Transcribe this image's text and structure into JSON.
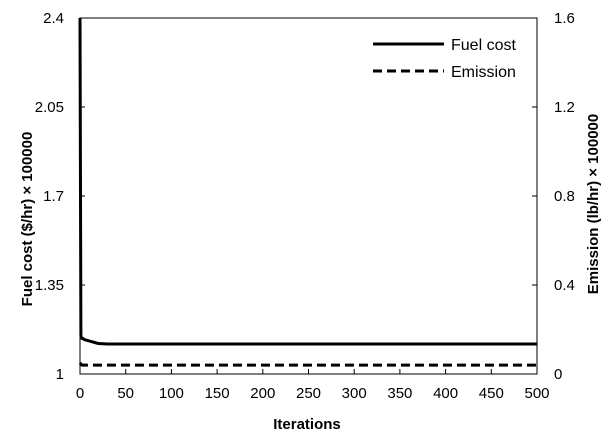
{
  "chart_data": {
    "type": "line",
    "xlabel": "Iterations",
    "ylabel_left": "Fuel cost ($/hr) × 100000",
    "ylabel_right": "Emission (lb/hr) × 100000",
    "xlim": [
      0,
      500
    ],
    "ylim_left": [
      1,
      2.4
    ],
    "ylim_right": [
      0,
      1.6
    ],
    "x_ticks": [
      "0",
      "50",
      "100",
      "150",
      "200",
      "250",
      "300",
      "350",
      "400",
      "450",
      "500"
    ],
    "y_left_ticks": [
      "1",
      "1.35",
      "1.7",
      "2.05",
      "2.4"
    ],
    "y_right_ticks": [
      "0",
      "0.4",
      "0.8",
      "1.2",
      "1.6"
    ],
    "grid": false,
    "legend_position": "top-right",
    "series": [
      {
        "name": "Fuel cost",
        "axis": "left",
        "style": "solid",
        "color": "#000000",
        "x": [
          0,
          1,
          2,
          3,
          5,
          10,
          20,
          30,
          50,
          100,
          200,
          300,
          400,
          500
        ],
        "y": [
          2.4,
          1.15,
          1.14,
          1.14,
          1.135,
          1.13,
          1.12,
          1.118,
          1.118,
          1.118,
          1.118,
          1.118,
          1.118,
          1.118
        ]
      },
      {
        "name": "Emission",
        "axis": "right",
        "style": "dashed",
        "color": "#000000",
        "x": [
          0,
          2,
          5,
          50,
          100,
          200,
          300,
          400,
          500
        ],
        "y": [
          0.05,
          0.04,
          0.04,
          0.04,
          0.04,
          0.04,
          0.04,
          0.04,
          0.04
        ]
      }
    ]
  }
}
